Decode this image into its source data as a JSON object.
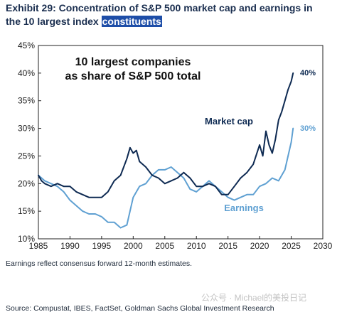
{
  "header": {
    "title_main": "Exhibit 29: Concentration of S&P 500 market cap and earnings in the 10 largest index ",
    "title_highlight": "constituents"
  },
  "footer": {
    "note": "Earnings reflect consensus forward 12-month estimates.",
    "source": "Source: Compustat, IBES, FactSet, Goldman Sachs Global Investment Research",
    "watermark": "公众号 · Michael的美投日记"
  },
  "chart_data": {
    "type": "line",
    "title_line1": "10 largest companies",
    "title_line2": "as share of S&P 500 total",
    "xlim": [
      1985,
      2030
    ],
    "ylim": [
      10,
      45
    ],
    "x_ticks": [
      "1985",
      "1990",
      "1995",
      "2000",
      "2005",
      "2010",
      "2015",
      "2020",
      "2025",
      "2030"
    ],
    "y_ticks": [
      "10%",
      "15%",
      "20%",
      "25%",
      "30%",
      "35%",
      "40%",
      "45%"
    ],
    "grid": false,
    "series": [
      {
        "name": "Market cap",
        "color": "#0e2a52",
        "end_label": "40%",
        "x": [
          1985,
          1985.5,
          1986,
          1987,
          1988,
          1989,
          1990,
          1991,
          1992,
          1993,
          1994,
          1995,
          1996,
          1997,
          1998,
          1999,
          1999.5,
          2000,
          2000.5,
          2001,
          2002,
          2003,
          2004,
          2005,
          2006,
          2007,
          2008,
          2009,
          2010,
          2011,
          2012,
          2013,
          2014,
          2015,
          2016,
          2017,
          2018,
          2019,
          2020,
          2020.5,
          2021,
          2021.5,
          2022,
          2022.5,
          2023,
          2023.5,
          2024,
          2024.5,
          2025,
          2025.3
        ],
        "y": [
          21.5,
          20.5,
          20,
          19.5,
          20,
          19.5,
          19.5,
          18.5,
          18,
          17.5,
          17.5,
          17.5,
          18.5,
          20.5,
          21.5,
          24.5,
          26.5,
          25.5,
          26,
          24,
          23,
          21.5,
          21,
          20,
          20.5,
          21,
          22,
          21,
          19.5,
          19.5,
          20,
          19.5,
          18,
          18,
          19.5,
          21,
          22,
          23.5,
          27,
          25,
          29.5,
          27,
          25.5,
          28,
          31.5,
          33,
          35,
          37,
          38.5,
          40
        ]
      },
      {
        "name": "Earnings",
        "color": "#5fa0d2",
        "end_label": "30%",
        "x": [
          1985,
          1986,
          1987,
          1988,
          1989,
          1990,
          1991,
          1992,
          1993,
          1994,
          1995,
          1996,
          1997,
          1998,
          1999,
          2000,
          2001,
          2002,
          2003,
          2004,
          2005,
          2006,
          2007,
          2008,
          2009,
          2010,
          2011,
          2012,
          2013,
          2014,
          2015,
          2016,
          2017,
          2018,
          2019,
          2020,
          2021,
          2022,
          2023,
          2024,
          2025,
          2025.3
        ],
        "y": [
          21.5,
          20.5,
          20,
          19.5,
          18.5,
          17,
          16,
          15,
          14.5,
          14.5,
          14,
          13,
          13,
          12,
          12.5,
          17.5,
          19.5,
          20,
          21.5,
          22.5,
          22.5,
          23,
          22,
          21,
          19,
          18.5,
          19.5,
          20.5,
          19.5,
          18.5,
          17.5,
          17,
          17.5,
          18,
          18,
          19.5,
          20,
          21,
          20.5,
          22.5,
          27.5,
          30
        ]
      }
    ]
  }
}
